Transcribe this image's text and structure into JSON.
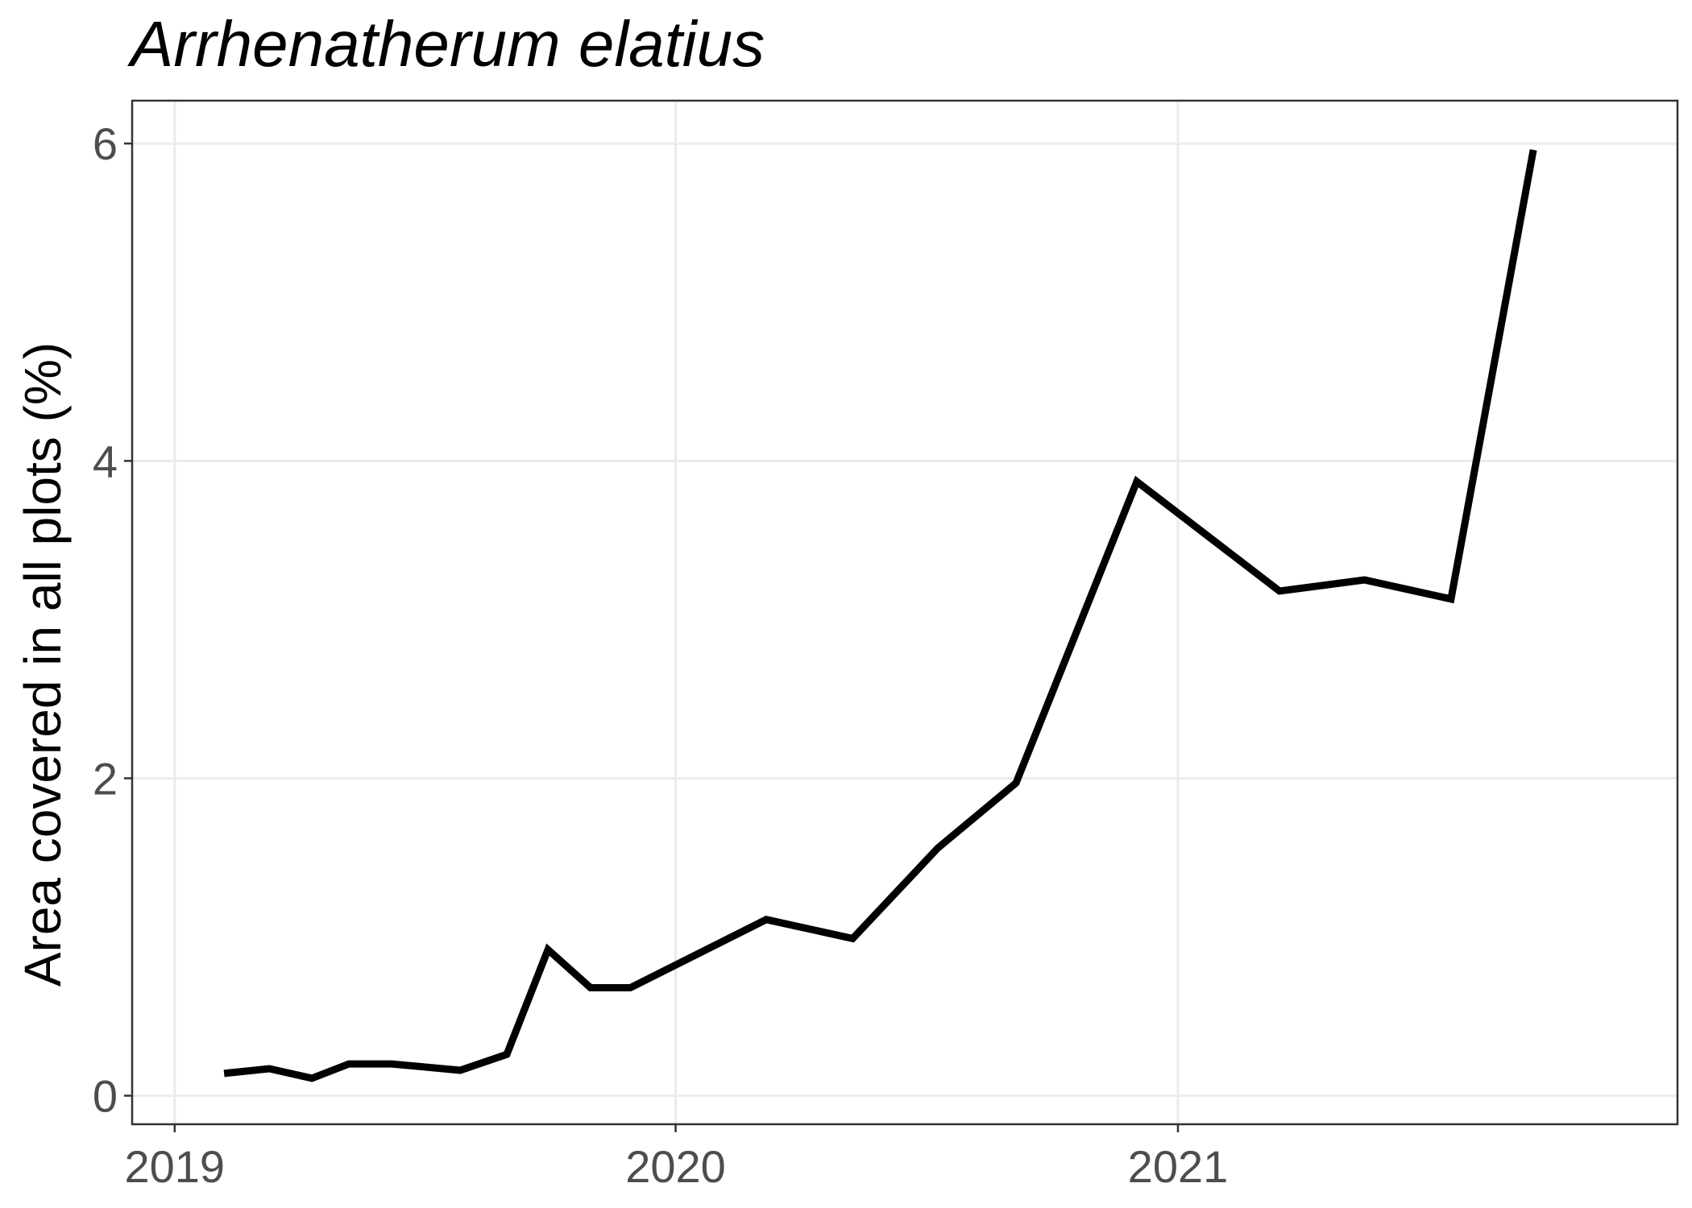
{
  "chart_data": {
    "type": "line",
    "title": "Arrhenatherum elatius",
    "xlabel": "",
    "ylabel": "Area covered in all plots (%)",
    "x_ticks": [
      "2019",
      "2020",
      "2021"
    ],
    "y_ticks": [
      0,
      2,
      4,
      6
    ],
    "xlim": [
      "2018-12-01",
      "2021-12-31"
    ],
    "ylim": [
      -0.18,
      6.27
    ],
    "grid": true,
    "legend": "none",
    "series": [
      {
        "color": "#000000",
        "points": [
          {
            "x": "2019-02-06",
            "y": 0.14
          },
          {
            "x": "2019-03-11",
            "y": 0.17
          },
          {
            "x": "2019-04-11",
            "y": 0.11
          },
          {
            "x": "2019-05-08",
            "y": 0.2
          },
          {
            "x": "2019-06-08",
            "y": 0.2
          },
          {
            "x": "2019-07-28",
            "y": 0.16
          },
          {
            "x": "2019-08-31",
            "y": 0.26
          },
          {
            "x": "2019-09-30",
            "y": 0.92
          },
          {
            "x": "2019-10-31",
            "y": 0.68
          },
          {
            "x": "2019-11-29",
            "y": 0.68
          },
          {
            "x": "2020-03-07",
            "y": 1.11
          },
          {
            "x": "2020-05-09",
            "y": 0.99
          },
          {
            "x": "2020-07-10",
            "y": 1.56
          },
          {
            "x": "2020-09-05",
            "y": 1.97
          },
          {
            "x": "2020-12-02",
            "y": 3.87
          },
          {
            "x": "2021-03-16",
            "y": 3.18
          },
          {
            "x": "2021-05-17",
            "y": 3.25
          },
          {
            "x": "2021-07-19",
            "y": 3.13
          },
          {
            "x": "2021-09-17",
            "y": 5.96
          }
        ]
      }
    ]
  }
}
